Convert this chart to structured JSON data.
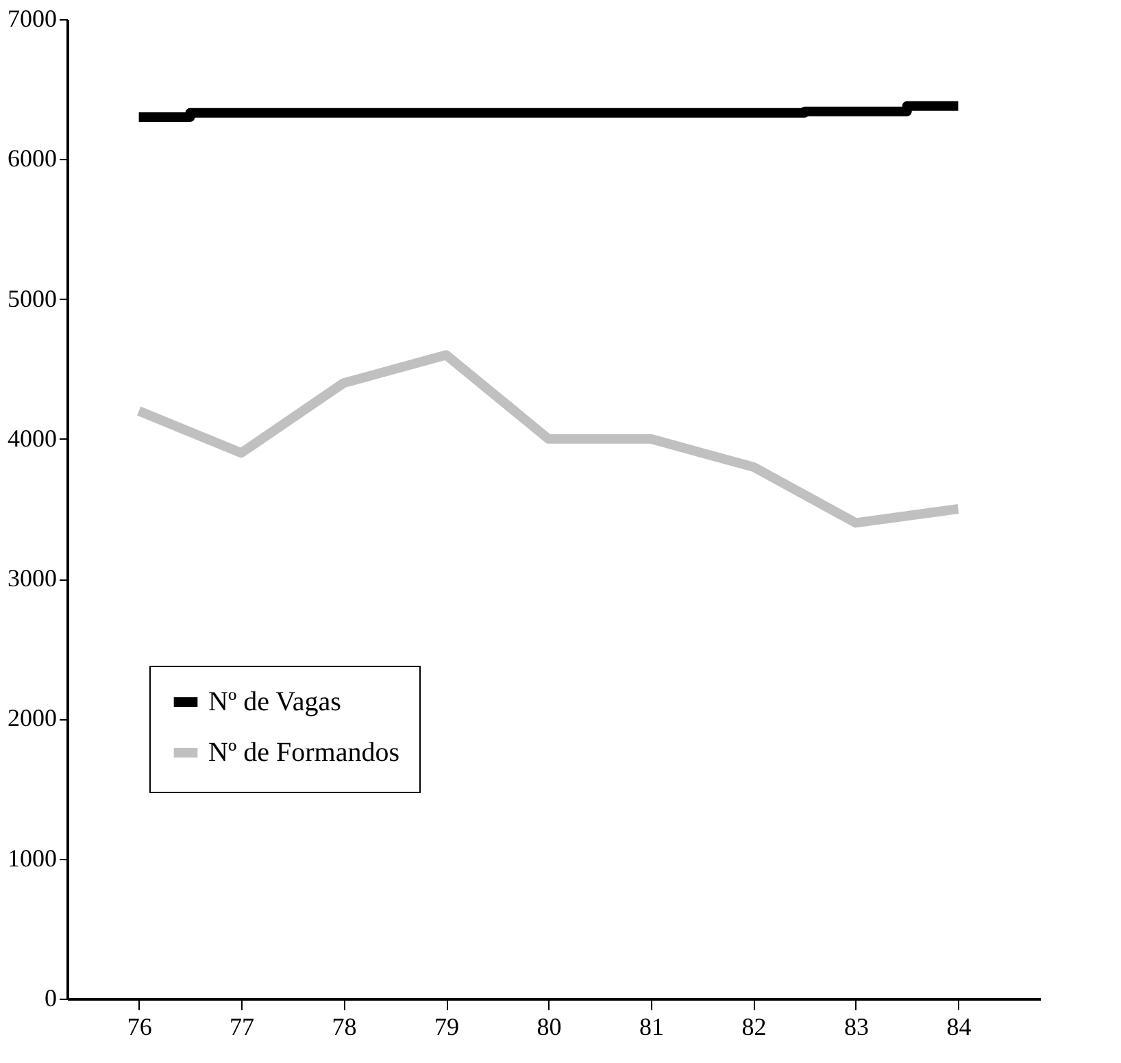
{
  "chart_data": {
    "type": "line",
    "categories": [
      "76",
      "77",
      "78",
      "79",
      "80",
      "81",
      "82",
      "83",
      "84"
    ],
    "series": [
      {
        "name": "Nº de Vagas",
        "color": "#000000",
        "type": "step",
        "values": [
          6300,
          6330,
          6330,
          6330,
          6330,
          6330,
          6330,
          6340,
          6380
        ]
      },
      {
        "name": "Nº de Formandos",
        "color": "#c0c0c0",
        "values": [
          4200,
          3900,
          4400,
          4600,
          4000,
          4000,
          3800,
          3400,
          3500
        ]
      }
    ],
    "ylim": [
      0,
      7000
    ],
    "yticks": [
      0,
      1000,
      2000,
      3000,
      4000,
      5000,
      6000,
      7000
    ],
    "grid": false,
    "legend": "bottom left",
    "marker": "none",
    "line_style": "solid"
  }
}
